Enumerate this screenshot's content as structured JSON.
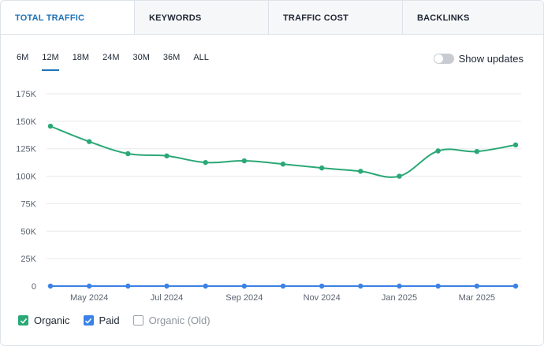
{
  "tabs": [
    {
      "label": "TOTAL TRAFFIC",
      "active": true
    },
    {
      "label": "KEYWORDS",
      "active": false
    },
    {
      "label": "TRAFFIC COST",
      "active": false
    },
    {
      "label": "BACKLINKS",
      "active": false
    }
  ],
  "periods": [
    "6M",
    "12M",
    "18M",
    "24M",
    "30M",
    "36M",
    "ALL"
  ],
  "active_period": "12M",
  "toggle": {
    "label": "Show updates",
    "on": false
  },
  "legend": [
    {
      "label": "Organic",
      "checked": true,
      "color": "#2aa876"
    },
    {
      "label": "Paid",
      "checked": true,
      "color": "#3b82e6"
    },
    {
      "label": "Organic (Old)",
      "checked": false,
      "color": "#9aa1aa"
    }
  ],
  "chart_data": {
    "type": "line",
    "x": [
      "2024-04",
      "2024-05",
      "2024-06",
      "2024-07",
      "2024-08",
      "2024-09",
      "2024-10",
      "2024-11",
      "2024-12",
      "2025-01",
      "2025-02",
      "2025-03",
      "2025-04"
    ],
    "x_tick_labels": [
      "May 2024",
      "Jul 2024",
      "Sep 2024",
      "Nov 2024",
      "Jan 2025",
      "Mar 2025"
    ],
    "x_tick_positions": [
      1,
      3,
      5,
      7,
      9,
      11
    ],
    "series": [
      {
        "name": "Organic",
        "color": "#2aa876",
        "values": [
          145500,
          131500,
          120500,
          118500,
          112500,
          114000,
          111000,
          107500,
          104500,
          100000,
          123000,
          122500,
          128500
        ]
      },
      {
        "name": "Paid",
        "color": "#3b82e6",
        "values": [
          0,
          0,
          0,
          0,
          0,
          0,
          0,
          0,
          0,
          0,
          0,
          0,
          0
        ]
      }
    ],
    "y_ticks": [
      0,
      25000,
      50000,
      75000,
      100000,
      125000,
      150000,
      175000
    ],
    "y_tick_labels": [
      "0",
      "25K",
      "50K",
      "75K",
      "100K",
      "125K",
      "150K",
      "175K"
    ],
    "ylim": [
      0,
      175000
    ],
    "title": "",
    "xlabel": "",
    "ylabel": "",
    "grid": true
  }
}
